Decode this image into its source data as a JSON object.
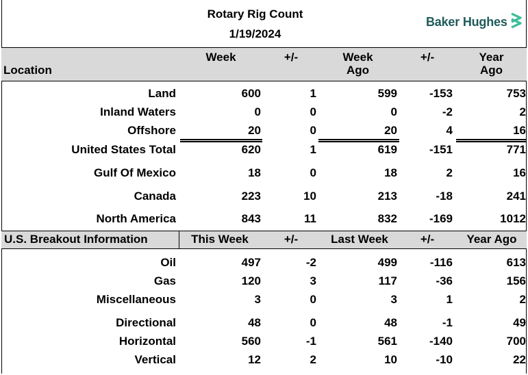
{
  "header": {
    "title": "Rotary Rig Count",
    "date": "1/19/2024",
    "brand": "Baker Hughes",
    "brand_color": "#1f5a5a",
    "brand_mark_color": "#3dbd9a",
    "brand_icon": "chevron-stack-icon"
  },
  "main_columns": {
    "location": "Location",
    "week": "Week",
    "change1": "+/-",
    "week_ago_1": "Week",
    "week_ago_2": "Ago",
    "change2": "+/-",
    "year_ago_1": "Year",
    "year_ago_2": "Ago"
  },
  "main_rows": [
    {
      "label": "Land",
      "week": "600",
      "chg": "1",
      "week_ago": "599",
      "chg2": "-153",
      "year_ago": "753"
    },
    {
      "label": "Inland Waters",
      "week": "0",
      "chg": "0",
      "week_ago": "0",
      "chg2": "-2",
      "year_ago": "2"
    },
    {
      "label": "Offshore",
      "week": "20",
      "chg": "0",
      "week_ago": "20",
      "chg2": "4",
      "year_ago": "16"
    },
    {
      "label": "United States Total",
      "week": "620",
      "chg": "1",
      "week_ago": "619",
      "chg2": "-151",
      "year_ago": "771"
    },
    {
      "label": "Gulf Of Mexico",
      "week": "18",
      "chg": "0",
      "week_ago": "18",
      "chg2": "2",
      "year_ago": "16"
    },
    {
      "label": "Canada",
      "week": "223",
      "chg": "10",
      "week_ago": "213",
      "chg2": "-18",
      "year_ago": "241"
    },
    {
      "label": "North America",
      "week": "843",
      "chg": "11",
      "week_ago": "832",
      "chg2": "-169",
      "year_ago": "1012"
    }
  ],
  "breakout_columns": {
    "section": "U.S. Breakout Information",
    "this_week": "This Week",
    "change1": "+/-",
    "last_week": "Last Week",
    "change2": "+/-",
    "year_ago": "Year Ago"
  },
  "breakout_rows": [
    {
      "label": "Oil",
      "week": "497",
      "chg": "-2",
      "week_ago": "499",
      "chg2": "-116",
      "year_ago": "613"
    },
    {
      "label": "Gas",
      "week": "120",
      "chg": "3",
      "week_ago": "117",
      "chg2": "-36",
      "year_ago": "156"
    },
    {
      "label": "Miscellaneous",
      "week": "3",
      "chg": "0",
      "week_ago": "3",
      "chg2": "1",
      "year_ago": "2"
    },
    {
      "label": "Directional",
      "week": "48",
      "chg": "0",
      "week_ago": "48",
      "chg2": "-1",
      "year_ago": "49"
    },
    {
      "label": "Horizontal",
      "week": "560",
      "chg": "-1",
      "week_ago": "561",
      "chg2": "-140",
      "year_ago": "700"
    },
    {
      "label": "Vertical",
      "week": "12",
      "chg": "2",
      "week_ago": "10",
      "chg2": "-10",
      "year_ago": "22"
    }
  ]
}
